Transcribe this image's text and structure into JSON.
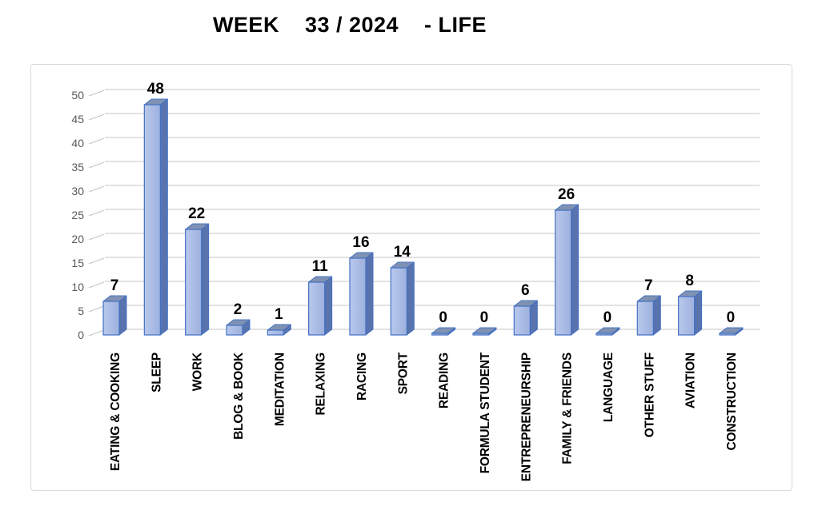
{
  "title": "WEEK    33 / 2024    - LIFE",
  "chart_data": {
    "type": "bar",
    "style": "3d-column",
    "title": "WEEK    33 / 2024    - LIFE",
    "categories": [
      "EATING & COOKING",
      "SLEEP",
      "WORK",
      "BLOG & BOOK",
      "MEDITATION",
      "RELAXING",
      "RACING",
      "SPORT",
      "READING",
      "FORMULA STUDENT",
      "ENTREPRENEURSHIP",
      "FAMILY & FRIENDS",
      "LANGUAGE",
      "OTHER STUFF",
      "AVIATION",
      "CONSTRUCTION"
    ],
    "values": [
      7,
      48,
      22,
      2,
      1,
      11,
      16,
      14,
      0,
      0,
      6,
      26,
      0,
      7,
      8,
      0
    ],
    "data_labels": [
      7,
      48,
      22,
      2,
      1,
      11,
      16,
      14,
      0,
      0,
      6,
      26,
      0,
      7,
      8,
      0
    ],
    "xlabel": "",
    "ylabel": "",
    "ylim": [
      0,
      50
    ],
    "yticks": [
      0,
      5,
      10,
      15,
      20,
      25,
      30,
      35,
      40,
      45,
      50
    ],
    "grid": true,
    "legend": false,
    "colors": {
      "bar_front_light": "#b9c8ec",
      "bar_front_dark": "#9db1de",
      "bar_top": "#8092b2",
      "bar_side": "#5873ae",
      "bar_outline": "#4472c4",
      "gridline": "#d9d9d9",
      "grid_diagonal": "#c6c6c6",
      "tick_text": "#595959",
      "label_text": "#000000",
      "chart_border": "#d9d9d9",
      "background": "#ffffff"
    }
  }
}
